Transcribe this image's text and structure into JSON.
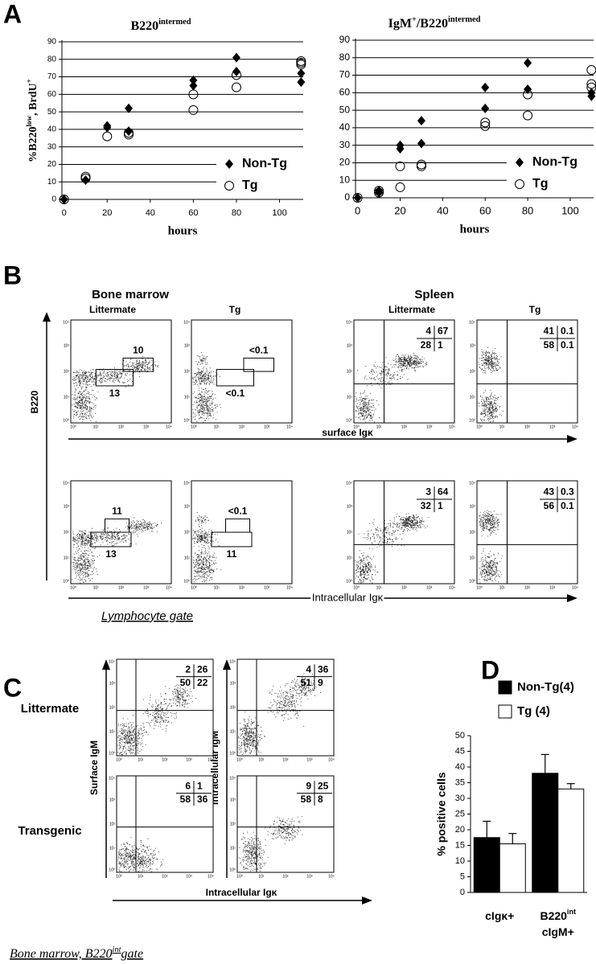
{
  "panel_labels": [
    "A",
    "B",
    "C",
    "D"
  ],
  "chart_data": [
    {
      "type": "scatter",
      "title": [
        "B220",
        "intermed"
      ],
      "ylabel": [
        "%B220",
        "low",
        ", BrdU",
        "+"
      ],
      "xlabel": "hours",
      "xlim": [
        -1,
        111
      ],
      "ylim": [
        0,
        90
      ],
      "xticks": [
        0,
        20,
        40,
        60,
        80,
        100
      ],
      "yticks": [
        0,
        10,
        20,
        30,
        40,
        50,
        60,
        70,
        80,
        90
      ],
      "grid": true,
      "legend": "lower right",
      "series": [
        {
          "name": "Non-Tg",
          "marker": "diamond",
          "color": "#000000",
          "x": [
            0,
            10,
            20,
            20,
            30,
            30,
            60,
            60,
            80,
            80,
            110,
            110
          ],
          "values": [
            0,
            11,
            42,
            41,
            52,
            39,
            68,
            65,
            81,
            73,
            72,
            67
          ]
        },
        {
          "name": "Tg",
          "marker": "circle",
          "color": "#000000",
          "x": [
            0,
            10,
            10,
            20,
            30,
            30,
            60,
            60,
            80,
            80,
            110,
            110,
            110
          ],
          "values": [
            0,
            13,
            12,
            36,
            38,
            37,
            60,
            51,
            71,
            64,
            79,
            78,
            77
          ]
        }
      ]
    },
    {
      "type": "scatter",
      "title": [
        "IgM",
        "+",
        "/B220",
        "intermed"
      ],
      "xlabel": "hours",
      "xlim": [
        -1,
        111
      ],
      "ylim": [
        0,
        90
      ],
      "xticks": [
        0,
        20,
        40,
        60,
        80,
        100
      ],
      "yticks": [
        0,
        10,
        20,
        30,
        40,
        50,
        60,
        70,
        80,
        90
      ],
      "grid": true,
      "legend": "lower right",
      "series": [
        {
          "name": "Non-Tg",
          "marker": "diamond",
          "color": "#000000",
          "x": [
            0,
            10,
            10,
            20,
            20,
            30,
            30,
            60,
            60,
            80,
            80,
            110,
            110
          ],
          "values": [
            0,
            3,
            4,
            30,
            28,
            44,
            31,
            63,
            51,
            77,
            62,
            60,
            58
          ]
        },
        {
          "name": "Tg",
          "marker": "circle",
          "color": "#000000",
          "x": [
            0,
            10,
            10,
            20,
            20,
            30,
            30,
            60,
            60,
            80,
            80,
            110,
            110,
            110
          ],
          "values": [
            0,
            4,
            3,
            18,
            6,
            19,
            18,
            43,
            41,
            59,
            47,
            73,
            65,
            63
          ]
        }
      ]
    },
    {
      "type": "bar",
      "ylabel": "% positive cells",
      "categories": [
        [
          [
            "cIgκ+"
          ]
        ],
        [
          [
            "B220",
            "int"
          ],
          [
            "cIgM+"
          ]
        ]
      ],
      "ylim": [
        0,
        50
      ],
      "yticks": [
        0,
        5,
        10,
        15,
        20,
        25,
        30,
        35,
        40,
        45,
        50
      ],
      "legend": "top",
      "series": [
        {
          "name": "Non-Tg(4)",
          "color": "#000000",
          "values": [
            17.5,
            38
          ],
          "errors": [
            5.2,
            6
          ]
        },
        {
          "name": "Tg (4)",
          "color": "#ffffff",
          "values": [
            15.5,
            33
          ],
          "errors": [
            3.3,
            1.7
          ]
        }
      ]
    }
  ],
  "panel_b": {
    "groups": [
      "Bone marrow",
      "Spleen"
    ],
    "columns": [
      "Littermate",
      "Tg",
      "Littermate",
      "Tg"
    ],
    "y_label": "B220",
    "x_labels": [
      "surface Igκ",
      "Intracellular Igκ"
    ],
    "gate_note": "Lymphocyte gate",
    "ticks": [
      "10⁰",
      "10¹",
      "10²",
      "10³",
      "10⁴"
    ],
    "gates": [
      [
        [
          10,
          13
        ],
        [
          "<0.1",
          "<0.1"
        ]
      ],
      [
        [
          11,
          13
        ],
        [
          "<0.1",
          11
        ]
      ]
    ],
    "quadrants": [
      [
        [
          4,
          67,
          28,
          1
        ],
        [
          41,
          0.1,
          58,
          0.1
        ]
      ],
      [
        [
          3,
          64,
          32,
          1
        ],
        [
          43,
          0.3,
          56,
          0.1
        ]
      ]
    ]
  },
  "panel_c": {
    "rows": [
      "Littermate",
      "Transgenic"
    ],
    "y_labels": [
      "Surface  IgM",
      "Intracellular IgM"
    ],
    "x_label": "Intracellular Igκ",
    "quadrants": [
      [
        [
          2,
          26,
          50,
          22
        ],
        [
          4,
          36,
          51,
          9
        ]
      ],
      [
        [
          6,
          1,
          58,
          36
        ],
        [
          9,
          25,
          58,
          8
        ]
      ]
    ]
  },
  "footer": [
    "Bone marrow, B220",
    "int",
    "gate"
  ]
}
